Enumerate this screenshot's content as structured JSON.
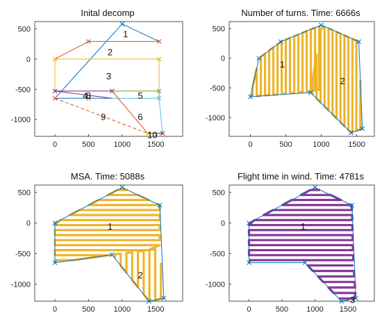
{
  "chart_data": [
    {
      "type": "line",
      "title": "Inital decomp",
      "xlim": [
        -300,
        1900
      ],
      "ylim": [
        -1280,
        620
      ],
      "xticks": [
        "0",
        "500",
        "1000",
        "1500"
      ],
      "yticks": [
        "500",
        "0",
        "-500",
        "-1000"
      ],
      "grid": false,
      "series": [
        {
          "color": "#0072BD",
          "x": [
            0,
            1000
          ],
          "y": [
            -650,
            580
          ]
        },
        {
          "color": "#0072BD",
          "x": [
            1000,
            1550
          ],
          "y": [
            580,
            290
          ]
        },
        {
          "color": "#D95319",
          "x": [
            500,
            1550
          ],
          "y": [
            290,
            290
          ]
        },
        {
          "color": "#D95319",
          "x": [
            500,
            0
          ],
          "y": [
            290,
            0
          ]
        },
        {
          "color": "#EDB120",
          "x": [
            0,
            1550
          ],
          "y": [
            0,
            0
          ]
        },
        {
          "color": "#EDB120",
          "x": [
            0,
            0,
            1550,
            1550
          ],
          "y": [
            0,
            -530,
            -530,
            0
          ]
        },
        {
          "color": "#7E2F8E",
          "x": [
            0,
            850
          ],
          "y": [
            -530,
            -530
          ]
        },
        {
          "color": "#7E2F8E",
          "x": [
            0,
            850
          ],
          "y": [
            -530,
            -650
          ]
        },
        {
          "color": "#77AC30",
          "x": [
            850,
            1550
          ],
          "y": [
            -530,
            -530
          ]
        },
        {
          "color": "#77AC30",
          "x": [
            1550,
            1550
          ],
          "y": [
            -530,
            -650
          ]
        },
        {
          "color": "#4DBEEE",
          "x": [
            850,
            1550,
            1600
          ],
          "y": [
            -650,
            -650,
            -1230
          ]
        },
        {
          "color": "#A2142F",
          "x": [
            1380,
            1600
          ],
          "y": [
            -1230,
            -1230
          ]
        },
        {
          "color": "#D95319",
          "x": [
            850,
            1380
          ],
          "y": [
            -530,
            -1230
          ]
        },
        {
          "color": "#D95319",
          "dash": true,
          "x": [
            0,
            1380
          ],
          "y": [
            -650,
            -1230
          ]
        },
        {
          "color": "#0072BD",
          "x": [
            0,
            850
          ],
          "y": [
            -650,
            -650
          ]
        }
      ],
      "markers": [
        {
          "color": "#0072BD",
          "x": 1000,
          "y": 580
        },
        {
          "color": "#D95319",
          "x": 500,
          "y": 290
        },
        {
          "color": "#D95319",
          "x": 1550,
          "y": 290
        },
        {
          "color": "#EDB120",
          "x": 0,
          "y": 0
        },
        {
          "color": "#EDB120",
          "x": 1550,
          "y": 0
        },
        {
          "color": "#7E2F8E",
          "x": 0,
          "y": -530
        },
        {
          "color": "#7E2F8E",
          "x": 850,
          "y": -530
        },
        {
          "color": "#77AC30",
          "x": 1550,
          "y": -530
        },
        {
          "color": "#4DBEEE",
          "x": 1550,
          "y": -650
        },
        {
          "color": "#D95319",
          "x": 0,
          "y": -650
        },
        {
          "color": "#D95319",
          "x": 500,
          "y": -650
        },
        {
          "color": "#A2142F",
          "x": 1600,
          "y": -1230
        },
        {
          "color": "#EDB120",
          "x": 1380,
          "y": -1230
        }
      ],
      "region_labels": [
        {
          "text": "1",
          "x": 1050,
          "y": 420
        },
        {
          "text": "2",
          "x": 820,
          "y": 120
        },
        {
          "text": "3",
          "x": 800,
          "y": -280
        },
        {
          "text": "4",
          "x": 450,
          "y": -600
        },
        {
          "text": "8",
          "x": 500,
          "y": -600
        },
        {
          "text": "5",
          "x": 1270,
          "y": -600
        },
        {
          "text": "6",
          "x": 1270,
          "y": -950
        },
        {
          "text": "9",
          "x": 720,
          "y": -950
        },
        {
          "text": "10",
          "x": 1450,
          "y": -1250
        }
      ]
    },
    {
      "type": "line",
      "title": "Number of turns. Time: 6666s",
      "xlim": [
        -300,
        1750
      ],
      "ylim": [
        -1320,
        620
      ],
      "xticks": [
        "0",
        "500",
        "1000",
        "1500"
      ],
      "yticks": [
        "500",
        "0",
        "-500",
        "-1000"
      ],
      "grid": false,
      "outline": [
        [
          0,
          -650
        ],
        [
          120,
          0
        ],
        [
          430,
          280
        ],
        [
          1000,
          560
        ],
        [
          1530,
          280
        ],
        [
          1580,
          -1190
        ],
        [
          1420,
          -1260
        ],
        [
          850,
          -580
        ]
      ],
      "sweeps": [
        {
          "color": "#EDB120",
          "poly": [
            [
              0,
              -650
            ],
            [
              120,
              0
            ],
            [
              430,
              280
            ],
            [
              1000,
              560
            ],
            [
              1000,
              -520
            ],
            [
              850,
              -560
            ]
          ],
          "dir": "v",
          "count": 17
        },
        {
          "color": "#EDB120",
          "poly": [
            [
              850,
              -580
            ],
            [
              1000,
              560
            ],
            [
              1530,
              280
            ],
            [
              1580,
              -1190
            ],
            [
              1420,
              -1260
            ]
          ],
          "dir": "v",
          "count": 13
        }
      ],
      "region_labels": [
        {
          "text": "1",
          "x": 450,
          "y": -100
        },
        {
          "text": "2",
          "x": 1300,
          "y": -380
        }
      ]
    },
    {
      "type": "line",
      "title": "MSA. Time: 5088s",
      "xlim": [
        -300,
        1900
      ],
      "ylim": [
        -1280,
        620
      ],
      "xticks": [
        "0",
        "500",
        "1000",
        "1500"
      ],
      "yticks": [
        "500",
        "0",
        "-500",
        "-1000"
      ],
      "grid": false,
      "outline": [
        [
          0,
          -650
        ],
        [
          0,
          0
        ],
        [
          1000,
          580
        ],
        [
          1560,
          290
        ],
        [
          1620,
          -1230
        ],
        [
          1400,
          -1280
        ],
        [
          850,
          -520
        ]
      ],
      "sweeps": [
        {
          "color": "#EDB120",
          "poly": [
            [
              0,
              -650
            ],
            [
              0,
              0
            ],
            [
              1000,
              580
            ],
            [
              1560,
              290
            ],
            [
              1560,
              -420
            ],
            [
              850,
              -520
            ]
          ],
          "dir": "h",
          "count": 15
        },
        {
          "color": "#EDB120",
          "poly": [
            [
              850,
              -520
            ],
            [
              1560,
              -420
            ],
            [
              1620,
              -1230
            ],
            [
              1400,
              -1280
            ]
          ],
          "dir": "v",
          "count": 9
        }
      ],
      "region_labels": [
        {
          "text": "1",
          "x": 820,
          "y": -50
        },
        {
          "text": "2",
          "x": 1270,
          "y": -850
        }
      ]
    },
    {
      "type": "line",
      "title": "Flight time in wind. Time: 4781s",
      "xlim": [
        -300,
        1900
      ],
      "ylim": [
        -1280,
        620
      ],
      "xticks": [
        "0",
        "500",
        "1000",
        "1500"
      ],
      "yticks": [
        "500",
        "0",
        "-500",
        "-1000"
      ],
      "grid": false,
      "outline": [
        [
          0,
          -650
        ],
        [
          0,
          0
        ],
        [
          1000,
          580
        ],
        [
          1560,
          290
        ],
        [
          1620,
          -1230
        ],
        [
          1400,
          -1280
        ],
        [
          850,
          -650
        ]
      ],
      "sweeps": [
        {
          "color": "#7E2F8E",
          "poly": [
            [
              0,
              -650
            ],
            [
              0,
              0
            ],
            [
              1000,
              580
            ],
            [
              1560,
              290
            ],
            [
              1580,
              -650
            ]
          ],
          "dir": "h",
          "count": 15
        },
        {
          "color": "#7E2F8E",
          "poly": [
            [
              850,
              -650
            ],
            [
              1580,
              -650
            ],
            [
              1620,
              -1230
            ],
            [
              1400,
              -1280
            ]
          ],
          "dir": "h",
          "count": 7
        }
      ],
      "region_labels": [
        {
          "text": "1",
          "x": 820,
          "y": -50
        },
        {
          "text": "3",
          "x": 1570,
          "y": -1250
        }
      ]
    }
  ]
}
